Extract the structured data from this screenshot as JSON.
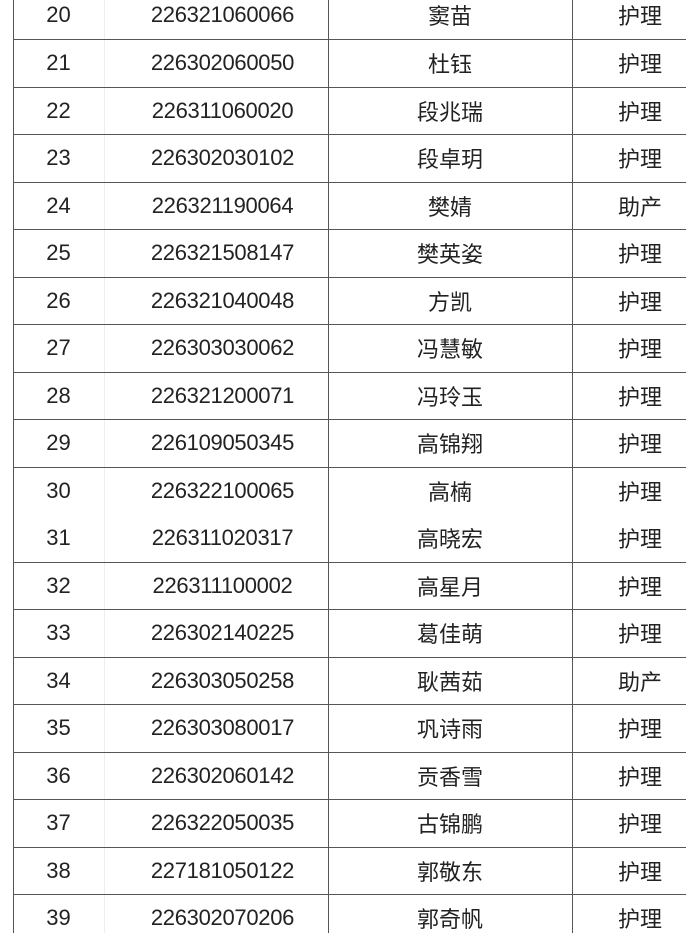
{
  "table": {
    "rows": [
      {
        "no": "20",
        "id": "226321060066",
        "name": "窦苗",
        "major": "护理"
      },
      {
        "no": "21",
        "id": "226302060050",
        "name": "杜钰",
        "major": "护理"
      },
      {
        "no": "22",
        "id": "226311060020",
        "name": "段兆瑞",
        "major": "护理"
      },
      {
        "no": "23",
        "id": "226302030102",
        "name": "段卓玥",
        "major": "护理"
      },
      {
        "no": "24",
        "id": "226321190064",
        "name": "樊婧",
        "major": "助产"
      },
      {
        "no": "25",
        "id": "226321508147",
        "name": "樊英姿",
        "major": "护理"
      },
      {
        "no": "26",
        "id": "226321040048",
        "name": "方凯",
        "major": "护理"
      },
      {
        "no": "27",
        "id": "226303030062",
        "name": "冯慧敏",
        "major": "护理"
      },
      {
        "no": "28",
        "id": "226321200071",
        "name": "冯玲玉",
        "major": "护理"
      },
      {
        "no": "29",
        "id": "226109050345",
        "name": "高锦翔",
        "major": "护理"
      },
      {
        "no": "30",
        "id": "226322100065",
        "name": "高楠",
        "major": "护理"
      },
      {
        "no": "31",
        "id": "226311020317",
        "name": "高晓宏",
        "major": "护理"
      },
      {
        "no": "32",
        "id": "226311100002",
        "name": "高星月",
        "major": "护理"
      },
      {
        "no": "33",
        "id": "226302140225",
        "name": "葛佳萌",
        "major": "护理"
      },
      {
        "no": "34",
        "id": "226303050258",
        "name": "耿茜茹",
        "major": "助产"
      },
      {
        "no": "35",
        "id": "226303080017",
        "name": "巩诗雨",
        "major": "护理"
      },
      {
        "no": "36",
        "id": "226302060142",
        "name": "贡香雪",
        "major": "护理"
      },
      {
        "no": "37",
        "id": "226322050035",
        "name": "古锦鹏",
        "major": "护理"
      },
      {
        "no": "38",
        "id": "227181050122",
        "name": "郭敬东",
        "major": "护理"
      },
      {
        "no": "39",
        "id": "226302070206",
        "name": "郭奇帆",
        "major": "护理"
      }
    ]
  }
}
